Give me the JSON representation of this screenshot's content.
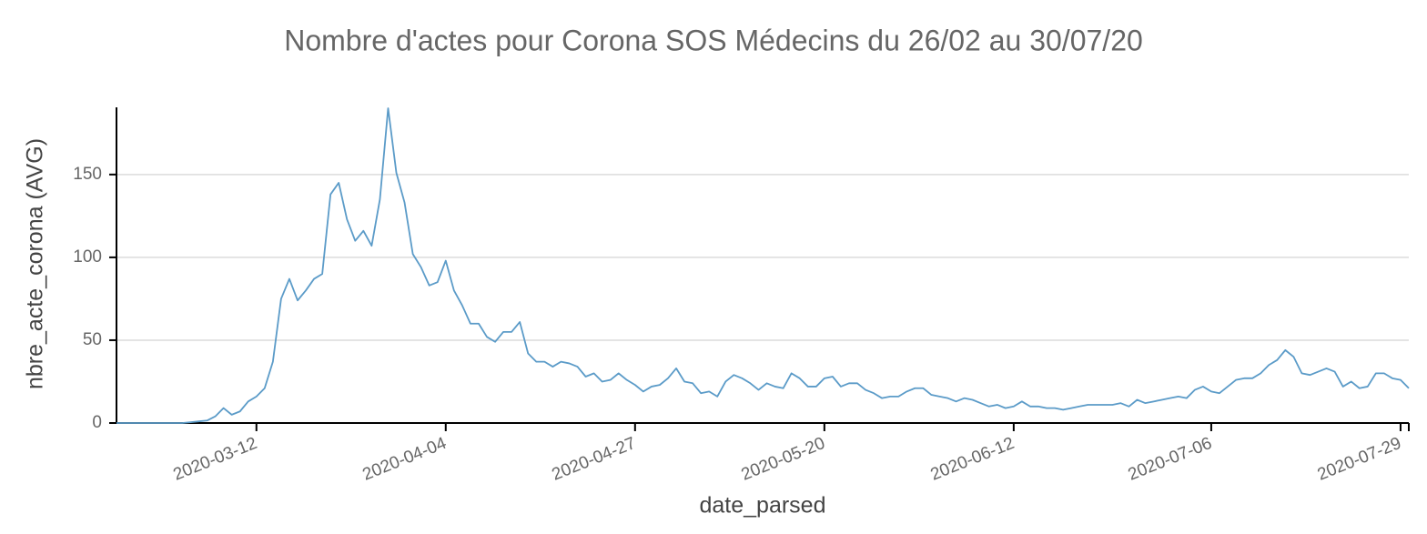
{
  "chart_data": {
    "type": "line",
    "title": "Nombre d'actes pour Corona SOS Médecins du 26/02 au 30/07/20",
    "x_label": "date_parsed",
    "y_label": "nbre_acte_corona (AVG)",
    "x": [
      "2020-02-24",
      "2020-02-25",
      "2020-02-26",
      "2020-02-27",
      "2020-02-28",
      "2020-02-29",
      "2020-03-01",
      "2020-03-02",
      "2020-03-03",
      "2020-03-04",
      "2020-03-05",
      "2020-03-06",
      "2020-03-07",
      "2020-03-08",
      "2020-03-09",
      "2020-03-10",
      "2020-03-11",
      "2020-03-12",
      "2020-03-13",
      "2020-03-14",
      "2020-03-15",
      "2020-03-16",
      "2020-03-17",
      "2020-03-18",
      "2020-03-19",
      "2020-03-20",
      "2020-03-21",
      "2020-03-22",
      "2020-03-23",
      "2020-03-24",
      "2020-03-25",
      "2020-03-26",
      "2020-03-27",
      "2020-03-28",
      "2020-03-29",
      "2020-03-30",
      "2020-03-31",
      "2020-04-01",
      "2020-04-02",
      "2020-04-03",
      "2020-04-04",
      "2020-04-05",
      "2020-04-06",
      "2020-04-07",
      "2020-04-08",
      "2020-04-09",
      "2020-04-10",
      "2020-04-11",
      "2020-04-12",
      "2020-04-13",
      "2020-04-14",
      "2020-04-15",
      "2020-04-16",
      "2020-04-17",
      "2020-04-18",
      "2020-04-19",
      "2020-04-20",
      "2020-04-21",
      "2020-04-22",
      "2020-04-23",
      "2020-04-24",
      "2020-04-25",
      "2020-04-26",
      "2020-04-27",
      "2020-04-28",
      "2020-04-29",
      "2020-04-30",
      "2020-05-01",
      "2020-05-02",
      "2020-05-03",
      "2020-05-04",
      "2020-05-05",
      "2020-05-06",
      "2020-05-07",
      "2020-05-08",
      "2020-05-09",
      "2020-05-10",
      "2020-05-11",
      "2020-05-12",
      "2020-05-13",
      "2020-05-14",
      "2020-05-15",
      "2020-05-16",
      "2020-05-17",
      "2020-05-18",
      "2020-05-19",
      "2020-05-20",
      "2020-05-21",
      "2020-05-22",
      "2020-05-23",
      "2020-05-24",
      "2020-05-25",
      "2020-05-26",
      "2020-05-27",
      "2020-05-28",
      "2020-05-29",
      "2020-05-30",
      "2020-05-31",
      "2020-06-01",
      "2020-06-02",
      "2020-06-03",
      "2020-06-04",
      "2020-06-05",
      "2020-06-06",
      "2020-06-07",
      "2020-06-08",
      "2020-06-09",
      "2020-06-10",
      "2020-06-11",
      "2020-06-12",
      "2020-06-13",
      "2020-06-14",
      "2020-06-15",
      "2020-06-16",
      "2020-06-17",
      "2020-06-18",
      "2020-06-19",
      "2020-06-20",
      "2020-06-21",
      "2020-06-22",
      "2020-06-23",
      "2020-06-24",
      "2020-06-25",
      "2020-06-26",
      "2020-06-27",
      "2020-06-28",
      "2020-06-29",
      "2020-06-30",
      "2020-07-01",
      "2020-07-02",
      "2020-07-03",
      "2020-07-04",
      "2020-07-05",
      "2020-07-06",
      "2020-07-07",
      "2020-07-08",
      "2020-07-09",
      "2020-07-10",
      "2020-07-11",
      "2020-07-12",
      "2020-07-13",
      "2020-07-14",
      "2020-07-15",
      "2020-07-16",
      "2020-07-17",
      "2020-07-18",
      "2020-07-19",
      "2020-07-20",
      "2020-07-21",
      "2020-07-22",
      "2020-07-23",
      "2020-07-24",
      "2020-07-25",
      "2020-07-26",
      "2020-07-27",
      "2020-07-28",
      "2020-07-29",
      "2020-07-30"
    ],
    "series": [
      {
        "name": "nbre_acte_corona",
        "color": "#5b9bc8",
        "values": [
          0,
          0,
          0,
          0,
          0,
          0,
          0,
          0,
          0,
          0.5,
          1,
          1.5,
          4,
          9,
          5,
          7,
          13,
          16,
          21,
          37,
          75,
          87,
          74,
          80,
          87,
          90,
          138,
          145,
          123,
          110,
          116,
          107,
          135,
          190,
          151,
          133,
          102,
          94,
          83,
          85,
          98,
          80,
          71,
          60,
          60,
          52,
          49,
          55,
          55,
          61,
          42,
          37,
          37,
          34,
          37,
          36,
          34,
          28,
          30,
          25,
          26,
          30,
          26,
          23,
          19,
          22,
          23,
          27,
          33,
          25,
          24,
          18,
          19,
          16,
          25,
          29,
          27,
          24,
          20,
          24,
          22,
          21,
          30,
          27,
          22,
          22,
          27,
          28,
          22,
          24,
          24,
          20,
          18,
          15,
          16,
          16,
          19,
          21,
          21,
          17,
          16,
          15,
          13,
          15,
          14,
          12,
          10,
          11,
          9,
          10,
          13,
          10,
          10,
          9,
          9,
          8,
          9,
          10,
          11,
          11,
          11,
          11,
          12,
          10,
          14,
          12,
          13,
          14,
          15,
          16,
          15,
          20,
          22,
          19,
          18,
          22,
          26,
          27,
          27,
          30,
          35,
          38,
          44,
          40,
          30,
          29,
          31,
          33,
          31,
          22,
          25,
          21,
          22,
          30,
          30,
          27,
          26,
          21
        ]
      }
    ],
    "xlim": [
      "2020-02-24",
      "2020-07-30"
    ],
    "xticks": [
      "2020-03-12",
      "2020-04-04",
      "2020-04-27",
      "2020-05-20",
      "2020-06-12",
      "2020-07-06",
      "2020-07-29"
    ],
    "ylim": [
      0,
      190
    ],
    "yticks": [
      0,
      50,
      100,
      150
    ],
    "grid": true
  }
}
